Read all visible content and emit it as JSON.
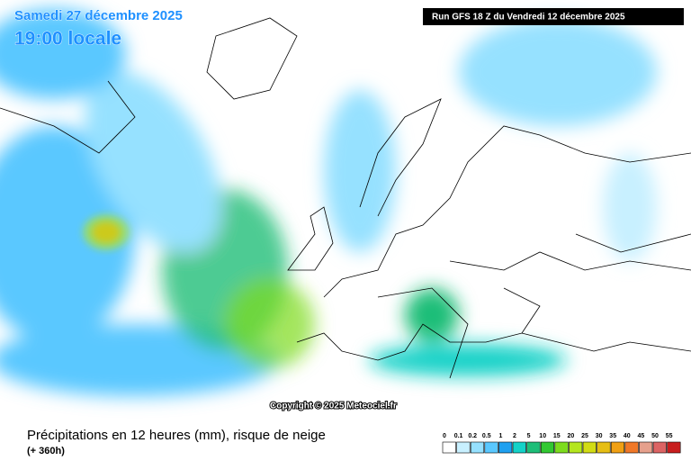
{
  "header": {
    "date": "Samedi 27 décembre 2025",
    "time": "19:00 locale",
    "run": "Run GFS 18 Z du Vendredi 12 décembre 2025"
  },
  "copyright": "Copyright © 2025 Meteociel.fr",
  "footer": {
    "title": "Précipitations en 12 heures (mm), risque de neige",
    "lead": "(+ 360h)"
  },
  "legend": {
    "labels": [
      0,
      0.1,
      0.2,
      0.5,
      1,
      2,
      5,
      10,
      15,
      20,
      25,
      30,
      35,
      40,
      45,
      50,
      55
    ],
    "colors": [
      "#ffffff",
      "#c8f0ff",
      "#96e1ff",
      "#5ac8ff",
      "#1ea0f0",
      "#14d2c8",
      "#1ebe78",
      "#32c832",
      "#7ddc1e",
      "#b4e61e",
      "#d2dc14",
      "#e6be14",
      "#f0a014",
      "#f07828",
      "#e6a08c",
      "#dc6464",
      "#c81e1e"
    ]
  }
}
